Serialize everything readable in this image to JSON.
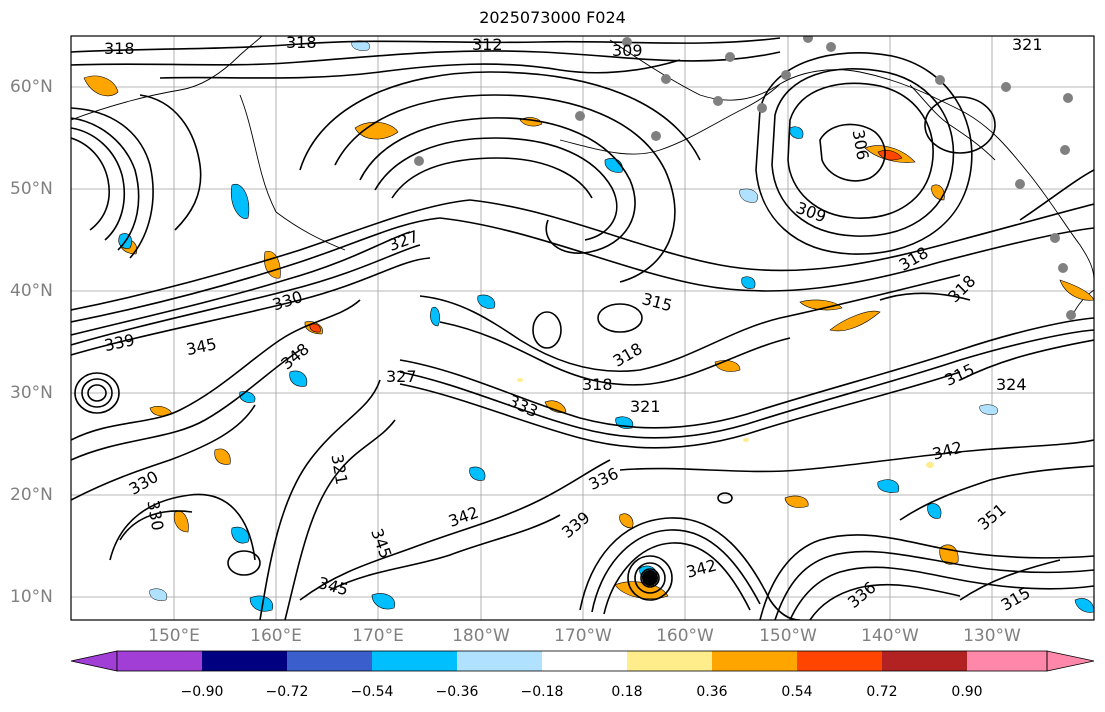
{
  "title": "2025073000 F024",
  "lat_labels": [
    "60°N",
    "50°N",
    "40°N",
    "30°N",
    "20°N",
    "10°N"
  ],
  "lon_labels": [
    "150°E",
    "160°E",
    "170°E",
    "180°W",
    "170°W",
    "160°W",
    "150°W",
    "140°W",
    "130°W"
  ],
  "contour_labels": [
    "318",
    "318",
    "312",
    "309",
    "321",
    "306",
    "309",
    "327",
    "330",
    "339",
    "345",
    "348",
    "315",
    "318",
    "327",
    "318",
    "333",
    "318",
    "321",
    "315",
    "318",
    "324",
    "342",
    "330",
    "321",
    "336",
    "342",
    "339",
    "345",
    "342",
    "330",
    "345",
    "336",
    "351",
    "315"
  ],
  "colorbar": {
    "colors": [
      "#a03ed6",
      "#000080",
      "#3a5fcd",
      "#00bfff",
      "#b0e2ff",
      "#ffffff",
      "#ffec8b",
      "#ffa500",
      "#ff4500",
      "#b22222",
      "#ff88aa"
    ],
    "ticks": [
      "−0.90",
      "−0.72",
      "−0.54",
      "−0.36",
      "−0.18",
      "0.18",
      "0.36",
      "0.54",
      "0.72",
      "0.90"
    ]
  },
  "colors": {
    "contour": "#000000",
    "grid": "#a0a0a0",
    "station_dot": "#808080",
    "coast": "#000000"
  }
}
